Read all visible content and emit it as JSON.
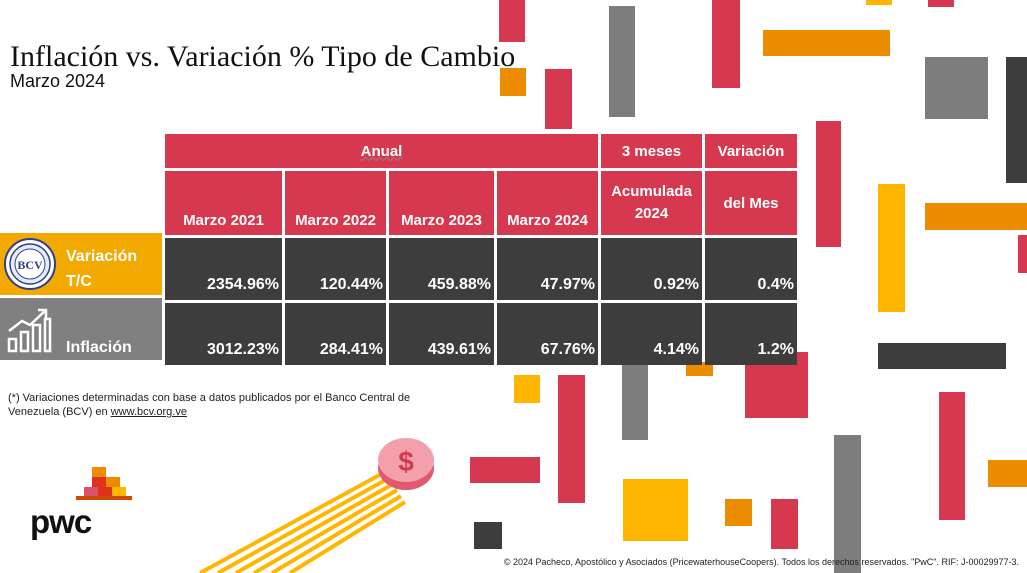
{
  "title": "Inflación vs. Variación % Tipo de Cambio",
  "subtitle": "Marzo 2024",
  "table": {
    "group_headers": [
      "Anual",
      "3 meses",
      "Variación"
    ],
    "column_headers": [
      "Marzo 2021",
      "Marzo 2022",
      "Marzo 2023",
      "Marzo 2024",
      "Acumulada 2024",
      "del Mes"
    ],
    "rows": [
      {
        "label_line1": "Variación",
        "label_line2": "T/C",
        "icon": "bcv-seal-icon",
        "values": [
          "2354.96%",
          "120.44%",
          "459.88%",
          "47.97%",
          "0.92%",
          "0.4%"
        ]
      },
      {
        "label_line1": "Inflación",
        "label_line2": "",
        "icon": "growth-chart-icon",
        "values": [
          "3012.23%",
          "284.41%",
          "439.61%",
          "67.76%",
          "4.14%",
          "1.2%"
        ]
      }
    ]
  },
  "note": {
    "text": "(*) Variaciones determinadas con base a datos publicados por el Banco Central de Venezuela  (BCV) en ",
    "link": "www.bcv.org.ve"
  },
  "coin_symbol": "$",
  "logo": "pwc",
  "copyright": "© 2024 Pacheco, Apostólico y Asociados (PricewaterhouseCoopers). Todos los derechos reservados. \"PwC\". RIF: J-00029977-3.",
  "colors": {
    "red": "#d6384f",
    "orange": "#ec8c00",
    "yellow": "#ffb600",
    "grey": "#7d7d7d",
    "dark": "#3d3d3d"
  }
}
